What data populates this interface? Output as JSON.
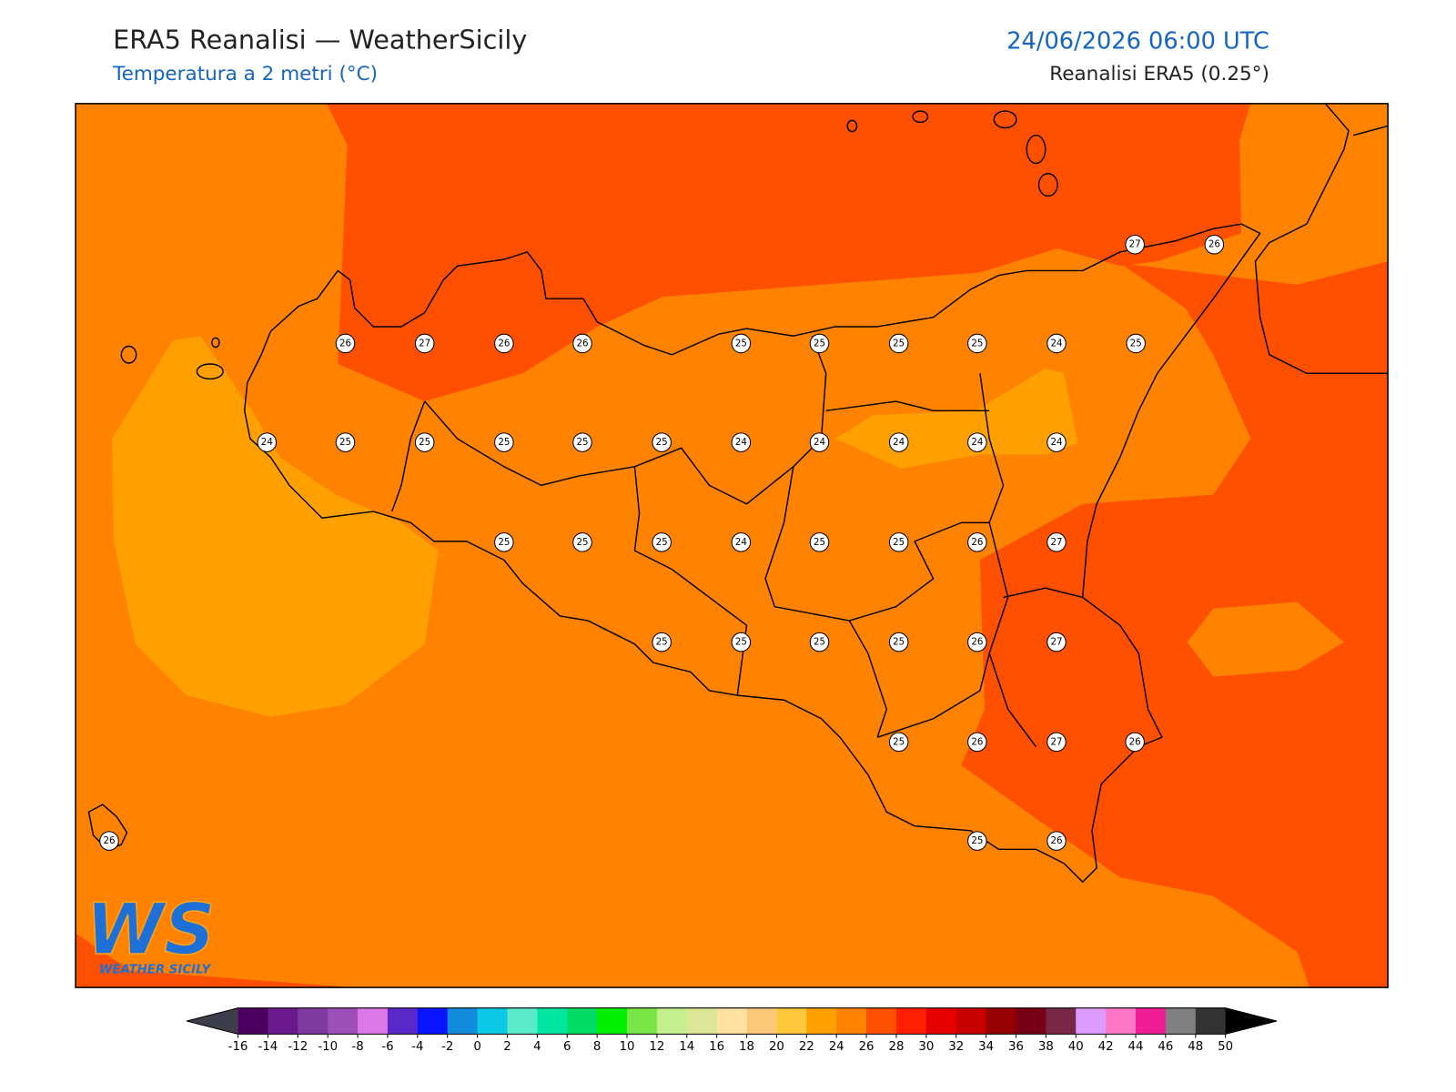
{
  "header": {
    "title": "ERA5 Reanalisi — WeatherSicily",
    "subtitle": "Temperatura a 2 metri (°C)",
    "datetime": "24/06/2026 06:00 UTC",
    "source": "Reanalisi ERA5 (0.25°)"
  },
  "map": {
    "stations": [
      27,
      26,
      26,
      27,
      26,
      26,
      25,
      25,
      25,
      25,
      24,
      25,
      24,
      25,
      25,
      25,
      25,
      25,
      24,
      24,
      24,
      24,
      24,
      25,
      25,
      25,
      24,
      25,
      25,
      26,
      27,
      25,
      25,
      25,
      25,
      26,
      27,
      25,
      26,
      27,
      26,
      26,
      25,
      26
    ]
  },
  "colorbar": {
    "ticks": [
      -16,
      -14,
      -12,
      -10,
      -8,
      -6,
      -4,
      -2,
      0,
      2,
      4,
      6,
      8,
      10,
      12,
      14,
      16,
      18,
      20,
      22,
      24,
      26,
      28,
      30,
      32,
      34,
      36,
      38,
      40,
      42,
      44,
      46,
      48,
      50
    ],
    "colors": [
      "#4b0060",
      "#6a1a8a",
      "#7e3aa0",
      "#9d4fb8",
      "#dc78e8",
      "#5a28c8",
      "#0a14ff",
      "#148cdc",
      "#0ac8e6",
      "#5aebc8",
      "#00e6a0",
      "#00dc64",
      "#00f000",
      "#78e646",
      "#c3f08c",
      "#dce696",
      "#ffe1a0",
      "#fac878",
      "#ffc83c",
      "#ffa000",
      "#ff8200",
      "#ff5000",
      "#ff1e00",
      "#e60000",
      "#c80000",
      "#960000",
      "#780014",
      "#782846",
      "#dc9bff",
      "#ff78c8",
      "#f01e96",
      "#808080",
      "#333333"
    ],
    "under_color": "#3c3c4a",
    "over_color": "#000000"
  },
  "logo": {
    "text": "WS",
    "tagline": "WEATHER SICILY"
  }
}
